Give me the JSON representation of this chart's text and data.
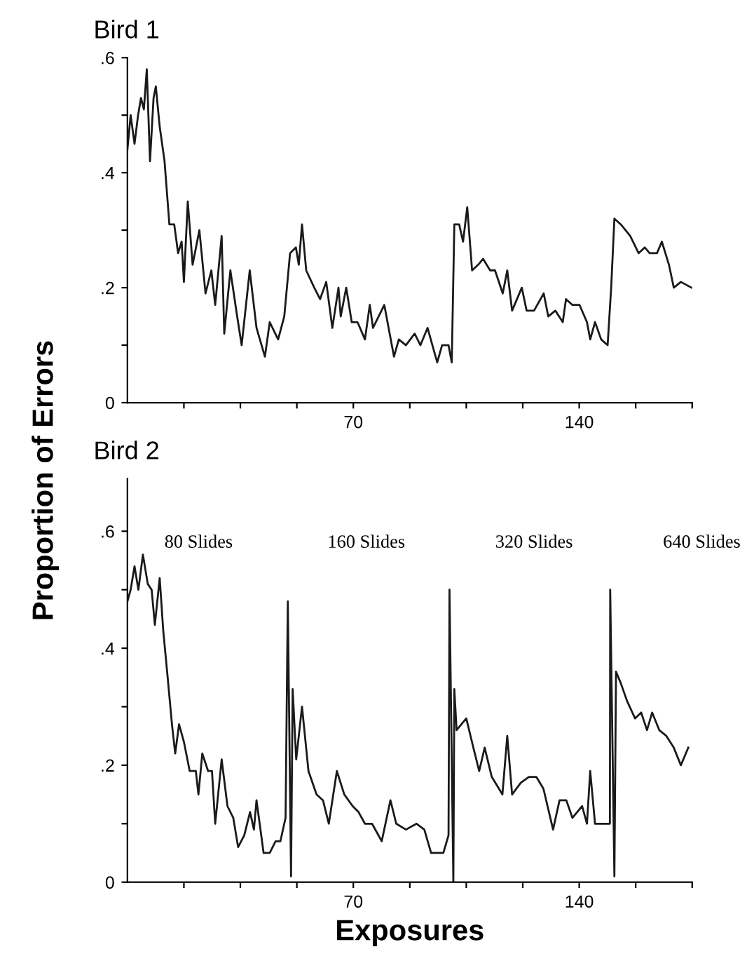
{
  "chart_data": [
    {
      "type": "line",
      "title": "Bird 1",
      "ylabel": "Proportion of Errors",
      "grid": false,
      "legend": false,
      "marker": "none",
      "line_style": "solid",
      "x": [
        0,
        1,
        2.2,
        3.3,
        4.2,
        5.1,
        6,
        7,
        8.1,
        8.8,
        10,
        11.5,
        13,
        14.5,
        15.7,
        16.8,
        17.5,
        18.7,
        20.2,
        22.3,
        24.2,
        26,
        27.2,
        29.2,
        30,
        31.9,
        34,
        35.4,
        37.9,
        40,
        42.6,
        44.1,
        46.7,
        48.6,
        50.4,
        52.2,
        53.1,
        54.1,
        55.4,
        57.9,
        59.7,
        61.6,
        63.5,
        65.4,
        66.1,
        67.8,
        69.5,
        71.3,
        73.6,
        75.1,
        76.1,
        79.6,
        82.6,
        84.1,
        86.3,
        89,
        90.8,
        93,
        96,
        97.5,
        99.5,
        100.5,
        101.3,
        102.8,
        104,
        105.3,
        106.8,
        108.7,
        110.2,
        112.4,
        113.9,
        116.3,
        117.7,
        119.2,
        122.2,
        123.7,
        126,
        129,
        130.4,
        132.6,
        134.9,
        135.9,
        137.9,
        140.1,
        142.4,
        143.4,
        144.9,
        146.8,
        148.8,
        149.9,
        150.9,
        152.9,
        155.8,
        158.4,
        160.3,
        161.8,
        164.1,
        165.6,
        167.8,
        169.3,
        171.5,
        174.8
      ],
      "series": [
        {
          "color": "#1a1a1a",
          "values": [
            0.44,
            0.5,
            0.45,
            0.5,
            0.53,
            0.51,
            0.58,
            0.42,
            0.53,
            0.55,
            0.48,
            0.42,
            0.31,
            0.31,
            0.26,
            0.28,
            0.21,
            0.35,
            0.24,
            0.3,
            0.19,
            0.23,
            0.17,
            0.29,
            0.12,
            0.23,
            0.15,
            0.1,
            0.23,
            0.13,
            0.08,
            0.14,
            0.11,
            0.15,
            0.26,
            0.27,
            0.24,
            0.31,
            0.23,
            0.2,
            0.18,
            0.21,
            0.13,
            0.2,
            0.15,
            0.2,
            0.14,
            0.14,
            0.11,
            0.17,
            0.13,
            0.17,
            0.08,
            0.11,
            0.1,
            0.12,
            0.1,
            0.13,
            0.07,
            0.1,
            0.1,
            0.07,
            0.31,
            0.31,
            0.28,
            0.34,
            0.23,
            0.24,
            0.25,
            0.23,
            0.23,
            0.19,
            0.23,
            0.16,
            0.2,
            0.16,
            0.16,
            0.19,
            0.15,
            0.16,
            0.14,
            0.18,
            0.17,
            0.17,
            0.14,
            0.11,
            0.14,
            0.11,
            0.1,
            0.2,
            0.32,
            0.31,
            0.29,
            0.26,
            0.27,
            0.26,
            0.26,
            0.28,
            0.24,
            0.2,
            0.21,
            0.2
          ]
        }
      ],
      "xlim": [
        0,
        175
      ],
      "xticks": [
        {
          "value": 17.5,
          "label": null
        },
        {
          "value": 35,
          "label": null
        },
        {
          "value": 52.5,
          "label": null
        },
        70,
        {
          "value": 87.5,
          "label": null
        },
        {
          "value": 105,
          "label": null
        },
        {
          "value": 122.5,
          "label": null
        },
        140,
        {
          "value": 157.5,
          "label": null
        },
        {
          "value": 175,
          "label": null
        }
      ],
      "ylim": [
        0,
        0.6
      ],
      "yticks": [
        {
          "value": 0,
          "label": "0"
        },
        {
          "value": 0.1,
          "label": null
        },
        {
          "value": 0.2,
          "label": ".2"
        },
        {
          "value": 0.3,
          "label": null
        },
        {
          "value": 0.4,
          "label": ".4"
        },
        {
          "value": 0.5,
          "label": null
        },
        {
          "value": 0.6,
          "label": ".6"
        }
      ]
    },
    {
      "type": "line",
      "title": "Bird 2",
      "xlabel": "Exposures",
      "grid": false,
      "legend": false,
      "marker": "none",
      "line_style": "solid",
      "annotations": [
        "80 Slides",
        "160 Slides",
        "320 Slides",
        "640 Slides"
      ],
      "x": [
        0,
        1,
        2.2,
        3.4,
        4.8,
        6.3,
        7.5,
        8.5,
        10,
        11.1,
        12.3,
        13.8,
        14.8,
        16,
        17.5,
        19.3,
        21.2,
        22,
        23.2,
        25,
        26.2,
        27.2,
        29.2,
        31,
        32.8,
        34.3,
        36.2,
        38,
        39.2,
        40,
        42.2,
        44.1,
        45.9,
        47.4,
        49,
        49.7,
        50.7,
        51.2,
        52.3,
        54.1,
        56.1,
        58.6,
        60.6,
        62.4,
        64.9,
        67.2,
        69.8,
        71.6,
        73.6,
        75.8,
        78.8,
        81.5,
        83.3,
        86.3,
        89.6,
        92,
        94.1,
        96,
        97.9,
        99.5,
        99.8,
        101,
        101.3,
        102,
        105,
        107.2,
        109,
        110.7,
        112.9,
        116.2,
        117.7,
        119.2,
        121.9,
        124.4,
        126.7,
        128.9,
        131.9,
        133.9,
        136,
        137.9,
        140.9,
        142.4,
        143.4,
        144.9,
        147.6,
        149.5,
        149.6,
        150.9,
        151.4,
        152.9,
        154.8,
        157.3,
        159.2,
        161,
        162.6,
        164.8,
        167,
        169.3,
        171.5,
        173.8
      ],
      "series": [
        {
          "color": "#1a1a1a",
          "values": [
            0.48,
            0.5,
            0.54,
            0.5,
            0.56,
            0.51,
            0.5,
            0.44,
            0.52,
            0.43,
            0.36,
            0.27,
            0.22,
            0.27,
            0.24,
            0.19,
            0.19,
            0.15,
            0.22,
            0.19,
            0.19,
            0.1,
            0.21,
            0.13,
            0.11,
            0.06,
            0.08,
            0.12,
            0.09,
            0.14,
            0.05,
            0.05,
            0.07,
            0.07,
            0.11,
            0.48,
            0.01,
            0.33,
            0.21,
            0.3,
            0.19,
            0.15,
            0.14,
            0.1,
            0.19,
            0.15,
            0.13,
            0.12,
            0.1,
            0.1,
            0.07,
            0.14,
            0.1,
            0.09,
            0.1,
            0.09,
            0.05,
            0.05,
            0.05,
            0.08,
            0.5,
            0.0,
            0.33,
            0.26,
            0.28,
            0.23,
            0.19,
            0.23,
            0.18,
            0.15,
            0.25,
            0.15,
            0.17,
            0.18,
            0.18,
            0.16,
            0.09,
            0.14,
            0.14,
            0.11,
            0.13,
            0.1,
            0.19,
            0.1,
            0.1,
            0.1,
            0.5,
            0.01,
            0.36,
            0.34,
            0.31,
            0.28,
            0.29,
            0.26,
            0.29,
            0.26,
            0.25,
            0.23,
            0.2,
            0.23
          ]
        }
      ],
      "xlim": [
        0,
        175
      ],
      "xticks": [
        {
          "value": 17.5,
          "label": null
        },
        {
          "value": 35,
          "label": null
        },
        {
          "value": 52.5,
          "label": null
        },
        70,
        {
          "value": 87.5,
          "label": null
        },
        {
          "value": 105,
          "label": null
        },
        {
          "value": 122.5,
          "label": null
        },
        140,
        {
          "value": 157.5,
          "label": null
        },
        {
          "value": 175,
          "label": null
        }
      ],
      "ylim": [
        0,
        0.69
      ],
      "yticks": [
        {
          "value": 0,
          "label": "0"
        },
        {
          "value": 0.1,
          "label": null
        },
        {
          "value": 0.2,
          "label": ".2"
        },
        {
          "value": 0.3,
          "label": null
        },
        {
          "value": 0.4,
          "label": ".4"
        },
        {
          "value": 0.5,
          "label": null
        },
        {
          "value": 0.6,
          "label": ".6"
        }
      ]
    }
  ]
}
